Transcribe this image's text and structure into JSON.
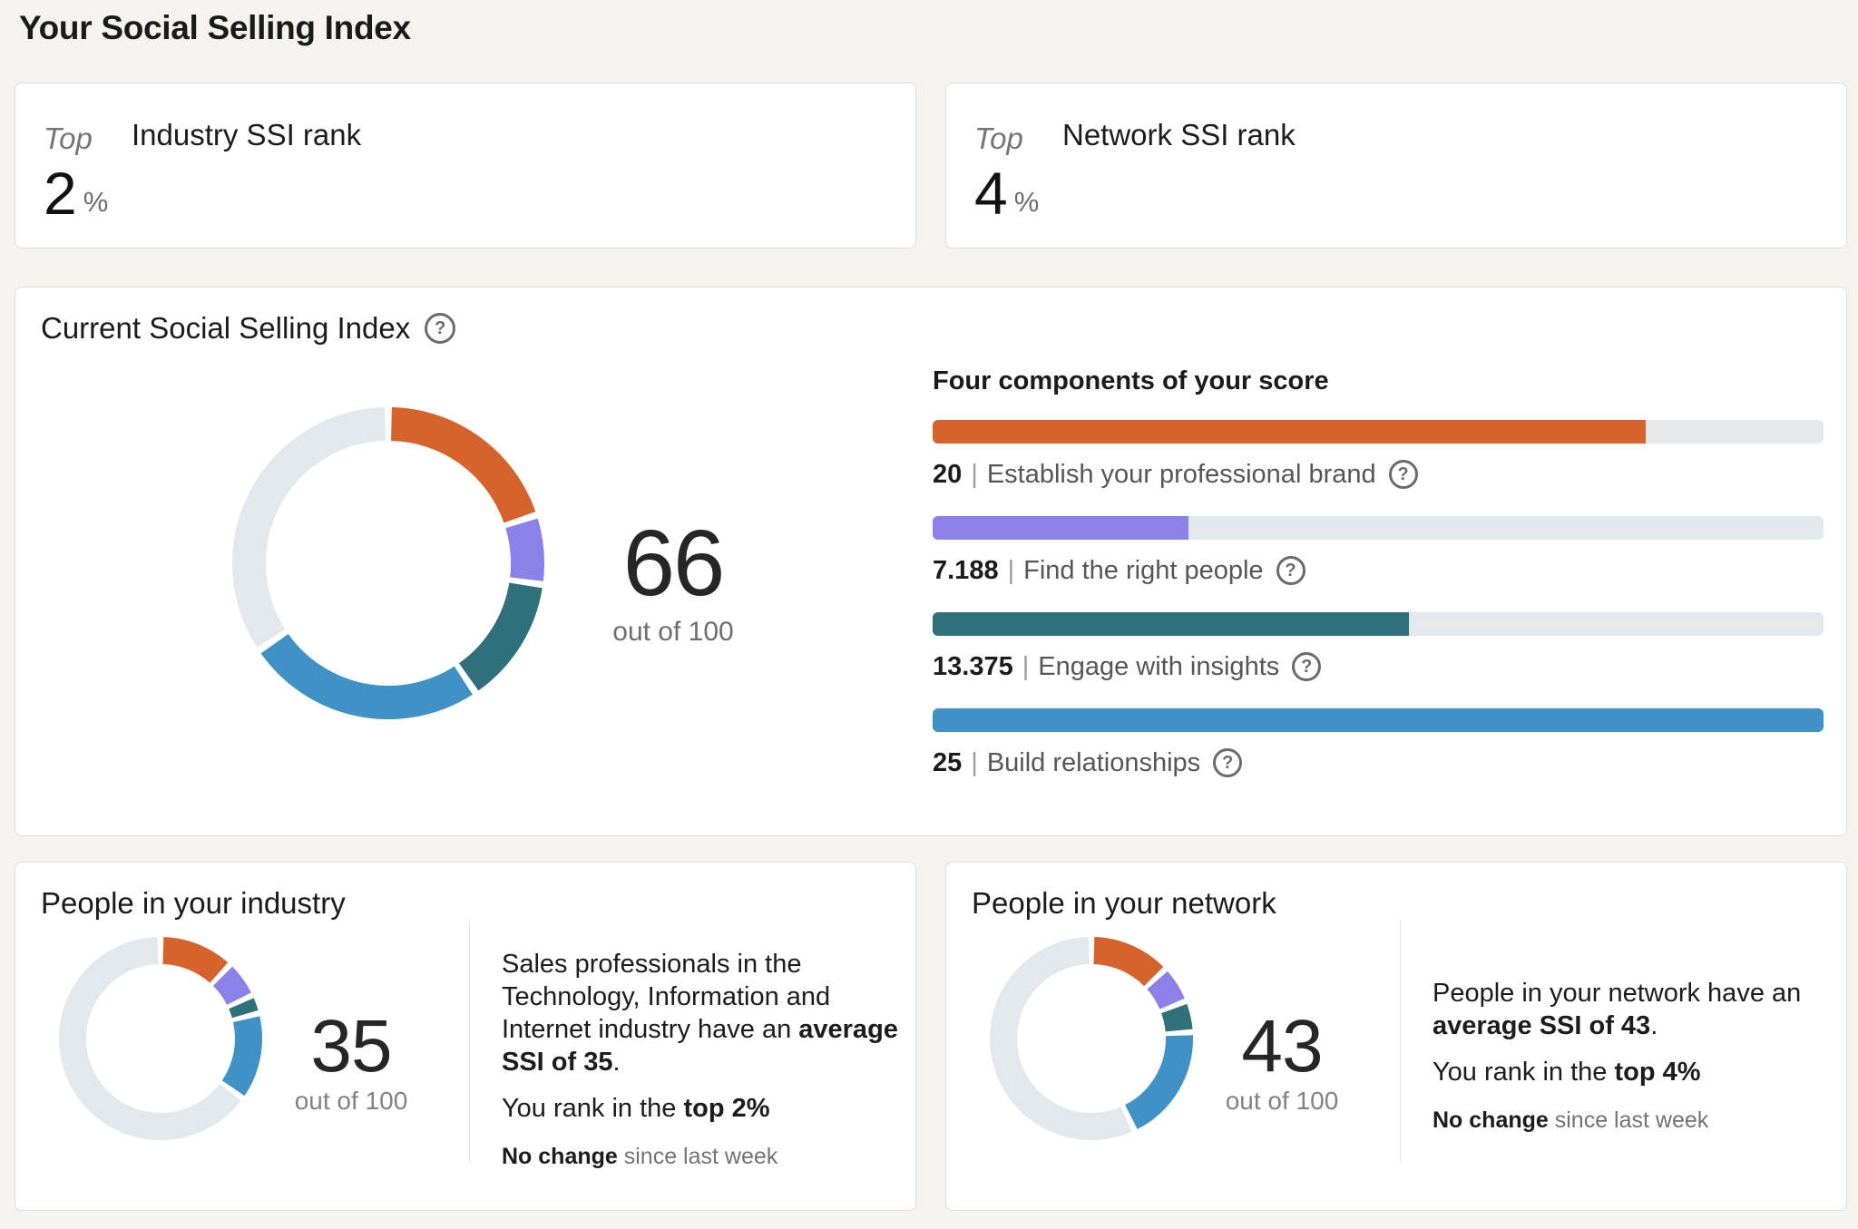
{
  "page": {
    "title": "Your Social Selling Index",
    "help_glyph": "?"
  },
  "colors": {
    "background": "#f4f3f0",
    "card_border": "#dfdede",
    "orange": "#d5632b",
    "purple": "#8c81e8",
    "teal": "#2f707d",
    "blue": "#3e92c5",
    "track": "#e3e8ec",
    "text_primary": "#1b1b1b",
    "text_secondary": "#6e6e6e"
  },
  "rank_cards": [
    {
      "prefix": "Top",
      "value": "2",
      "unit": "%",
      "label": "Industry SSI rank"
    },
    {
      "prefix": "Top",
      "value": "4",
      "unit": "%",
      "label": "Network SSI rank"
    }
  ],
  "current_ssi": {
    "title": "Current Social Selling Index",
    "score": "66",
    "out_of": "out of 100",
    "components_heading": "Four components of your score",
    "separator": "|",
    "components": [
      {
        "value": "20",
        "label": "Establish your professional brand"
      },
      {
        "value": "7.188",
        "label": "Find the right people"
      },
      {
        "value": "13.375",
        "label": "Engage with insights"
      },
      {
        "value": "25",
        "label": "Build relationships"
      }
    ]
  },
  "industry_card": {
    "title": "People in your industry",
    "score": "35",
    "out_of": "out of 100",
    "desc_normal": "Sales professionals in the Technology, Information and Internet industry have an ",
    "desc_bold": "average SSI of 35",
    "desc_end": ".",
    "rank_normal": "You rank in the ",
    "rank_bold": "top 2%",
    "change_bold": "No change",
    "change_normal": " since last week"
  },
  "network_card": {
    "title": "People in your network",
    "score": "43",
    "out_of": "out of 100",
    "desc_normal": "People in your network have an ",
    "desc_bold": "average SSI of 43",
    "desc_end": ".",
    "rank_normal": "You rank in the ",
    "rank_bold": "top 4%",
    "change_bold": "No change",
    "change_normal": " since last week"
  },
  "chart_data": [
    {
      "id": "current-ssi-donut",
      "type": "pie",
      "style": "donut",
      "title": "Current Social Selling Index",
      "center_value": 66,
      "max": 100,
      "start": "top",
      "direction": "clockwise",
      "track_color": "#e3e8ec",
      "segments": [
        {
          "label": "Establish your professional brand",
          "value": 20,
          "color": "#d5632b"
        },
        {
          "label": "Find the right people",
          "value": 7.188,
          "color": "#8c81e8"
        },
        {
          "label": "Engage with insights",
          "value": 13.375,
          "color": "#2f707d"
        },
        {
          "label": "Build relationships",
          "value": 25,
          "color": "#3e92c5"
        }
      ]
    },
    {
      "id": "score-components-bars",
      "type": "bar",
      "orientation": "horizontal",
      "title": "Four components of your score",
      "max_per_bar": 25,
      "categories": [
        "Establish your professional brand",
        "Find the right people",
        "Engage with insights",
        "Build relationships"
      ],
      "values": [
        20,
        7.188,
        13.375,
        25
      ],
      "colors": [
        "#d5632b",
        "#8c81e8",
        "#2f707d",
        "#3e92c5"
      ],
      "track_color": "#e3e8ec"
    },
    {
      "id": "industry-average-donut",
      "type": "pie",
      "style": "donut",
      "title": "People in your industry",
      "center_value": 35,
      "max": 100,
      "start": "top",
      "direction": "clockwise",
      "track_color": "#e3e8ec",
      "segments": [
        {
          "label": "Establish your professional brand",
          "value": 12,
          "color": "#d5632b"
        },
        {
          "label": "Find the right people",
          "value": 6,
          "color": "#8c81e8"
        },
        {
          "label": "Engage with insights",
          "value": 3,
          "color": "#2f707d"
        },
        {
          "label": "Build relationships",
          "value": 14,
          "color": "#3e92c5"
        }
      ]
    },
    {
      "id": "network-average-donut",
      "type": "pie",
      "style": "donut",
      "title": "People in your network",
      "center_value": 43,
      "max": 100,
      "start": "top",
      "direction": "clockwise",
      "track_color": "#e3e8ec",
      "segments": [
        {
          "label": "Establish your professional brand",
          "value": 13,
          "color": "#d5632b"
        },
        {
          "label": "Find the right people",
          "value": 6,
          "color": "#8c81e8"
        },
        {
          "label": "Engage with insights",
          "value": 5,
          "color": "#2f707d"
        },
        {
          "label": "Build relationships",
          "value": 19,
          "color": "#3e92c5"
        }
      ]
    }
  ]
}
